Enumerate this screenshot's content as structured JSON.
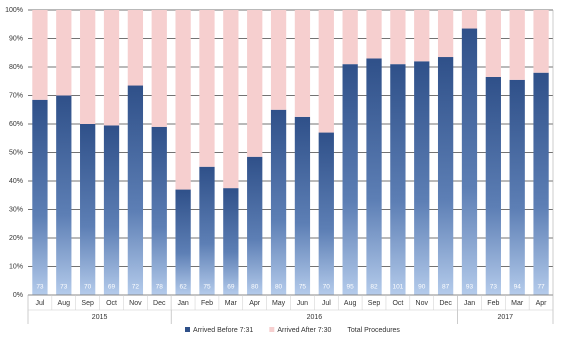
{
  "chart_data": {
    "type": "stacked-bar-100",
    "groups": [
      {
        "label": "2015",
        "categories": [
          "Jul",
          "Aug",
          "Sep",
          "Oct",
          "Nov",
          "Dec"
        ]
      },
      {
        "label": "2016",
        "categories": [
          "Jan",
          "Feb",
          "Mar",
          "Apr",
          "May",
          "Jun",
          "Jul",
          "Aug",
          "Sep",
          "Oct",
          "Nov",
          "Dec"
        ]
      },
      {
        "label": "2017",
        "categories": [
          "Jan",
          "Feb",
          "Mar",
          "Apr"
        ]
      }
    ],
    "series": [
      {
        "name": "Arrived Before 7:31",
        "color": "#2f5089",
        "values": [
          68.5,
          70,
          60,
          59.5,
          73.5,
          59,
          37,
          45,
          37.5,
          48.5,
          65,
          62.5,
          57,
          81,
          83,
          81,
          82,
          83.5,
          93.5,
          76.5,
          75.5,
          78
        ]
      },
      {
        "name": "Arrived After 7:30",
        "color": "#f6cfcf",
        "values": [
          31.5,
          30,
          40,
          40.5,
          26.5,
          41,
          63,
          55,
          62.5,
          51.5,
          35,
          37.5,
          43,
          19,
          17,
          19,
          18,
          16.5,
          6.5,
          23.5,
          24.5,
          22
        ]
      },
      {
        "name": "Total Procedures",
        "values": [
          73,
          73,
          70,
          69,
          72,
          78,
          62,
          75,
          69,
          80,
          80,
          75,
          70,
          95,
          82,
          101,
          90,
          87,
          93,
          73,
          94,
          77
        ]
      }
    ],
    "ylim": [
      0,
      100
    ],
    "yticks": [
      {
        "value": 0,
        "label": "0%"
      },
      {
        "value": 10,
        "label": "10%"
      },
      {
        "value": 20,
        "label": "20%"
      },
      {
        "value": 30,
        "label": "30%"
      },
      {
        "value": 40,
        "label": "40%"
      },
      {
        "value": 50,
        "label": "50%"
      },
      {
        "value": 60,
        "label": "60%"
      },
      {
        "value": 70,
        "label": "70%"
      },
      {
        "value": 80,
        "label": "80%"
      },
      {
        "value": 90,
        "label": "90%"
      },
      {
        "value": 100,
        "label": "100%"
      }
    ],
    "grid": true
  }
}
